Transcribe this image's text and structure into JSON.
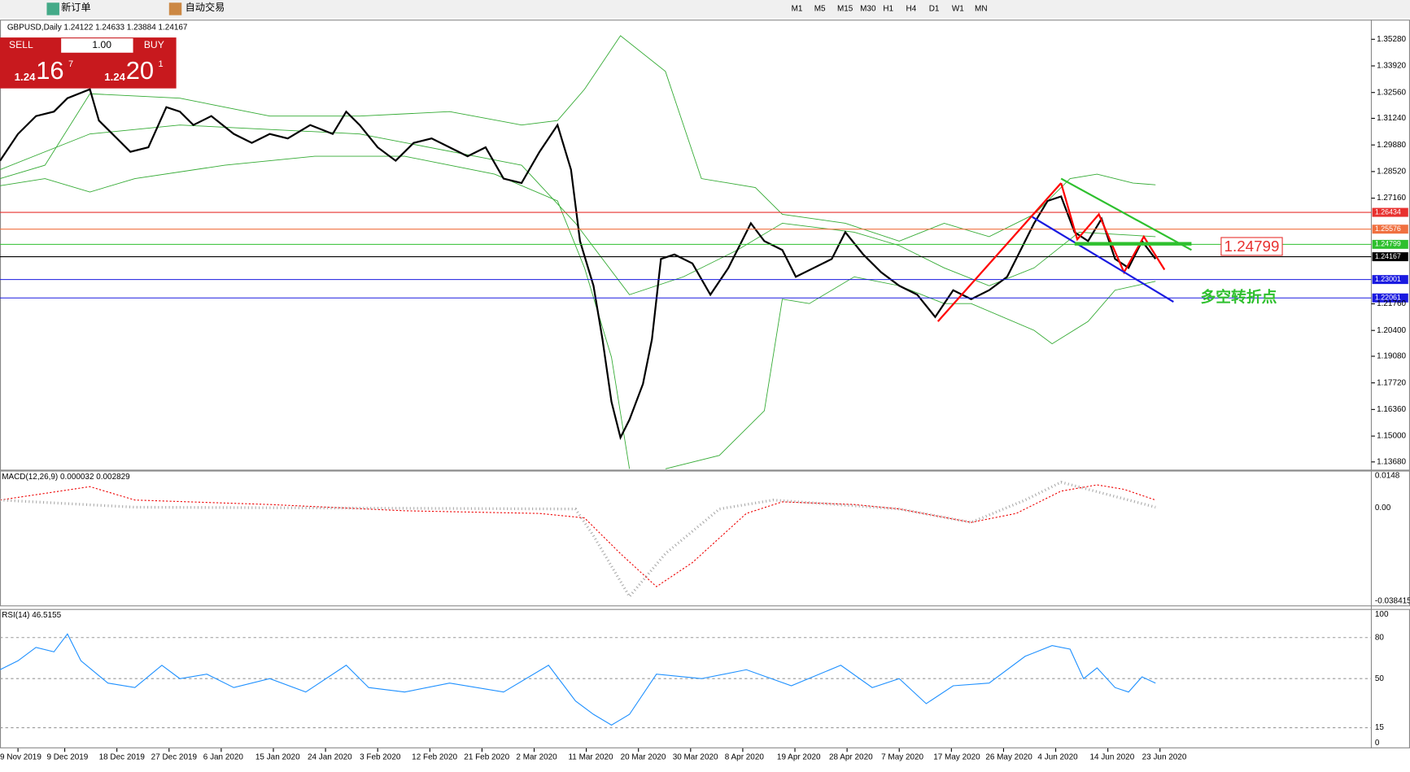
{
  "toolbar": {
    "new_order": "新订单",
    "auto_trading": "自动交易",
    "timeframes": [
      "M1",
      "M5",
      "M15",
      "M30",
      "H1",
      "H4",
      "D1",
      "W1",
      "MN"
    ]
  },
  "chart_header": "GBPUSD,Daily  1.24122 1.24633 1.23884 1.24167",
  "trade_panel": {
    "sell": "SELL",
    "buy": "BUY",
    "lots": "1.00",
    "sell_big": "1.24",
    "sell_pips": "16",
    "sell_frac": "7",
    "buy_big": "1.24",
    "buy_pips": "20",
    "buy_frac": "1"
  },
  "price_axis": [
    "1.35280",
    "1.33920",
    "1.32560",
    "1.31240",
    "1.29880",
    "1.28520",
    "1.27160",
    "1.21760",
    "1.20400",
    "1.19080",
    "1.17720",
    "1.16360",
    "1.15000",
    "1.13680"
  ],
  "price_levels": [
    {
      "label": "1.26434",
      "color": "#e8312f"
    },
    {
      "label": "1.25576",
      "color": "#f07040"
    },
    {
      "label": "1.24799",
      "color": "#2ec02e"
    },
    {
      "label": "1.24167",
      "color": "#000000"
    },
    {
      "label": "1.23001",
      "color": "#1a1ae0"
    },
    {
      "label": "1.22061",
      "color": "#1a1ae0"
    }
  ],
  "annotations": {
    "level": "1.24799",
    "note": "多空转折点"
  },
  "macd": {
    "header": "MACD(12,26,9) 0.000032 0.002829",
    "axis": [
      "0.0148",
      "0.00",
      "-0.038415"
    ]
  },
  "rsi": {
    "header": "RSI(14) 46.5155",
    "axis": [
      "100",
      "80",
      "50",
      "15",
      "0"
    ]
  },
  "dates": [
    "9 Nov 2019",
    "9 Dec 2019",
    "18 Dec 2019",
    "27 Dec 2019",
    "6 Jan 2020",
    "15 Jan 2020",
    "24 Jan 2020",
    "3 Feb 2020",
    "12 Feb 2020",
    "21 Feb 2020",
    "2 Mar 2020",
    "11 Mar 2020",
    "20 Mar 2020",
    "30 Mar 2020",
    "8 Apr 2020",
    "19 Apr 2020",
    "28 Apr 2020",
    "7 May 2020",
    "17 May 2020",
    "26 May 2020",
    "4 Jun 2020",
    "14 Jun 2020",
    "23 Jun 2020"
  ]
}
